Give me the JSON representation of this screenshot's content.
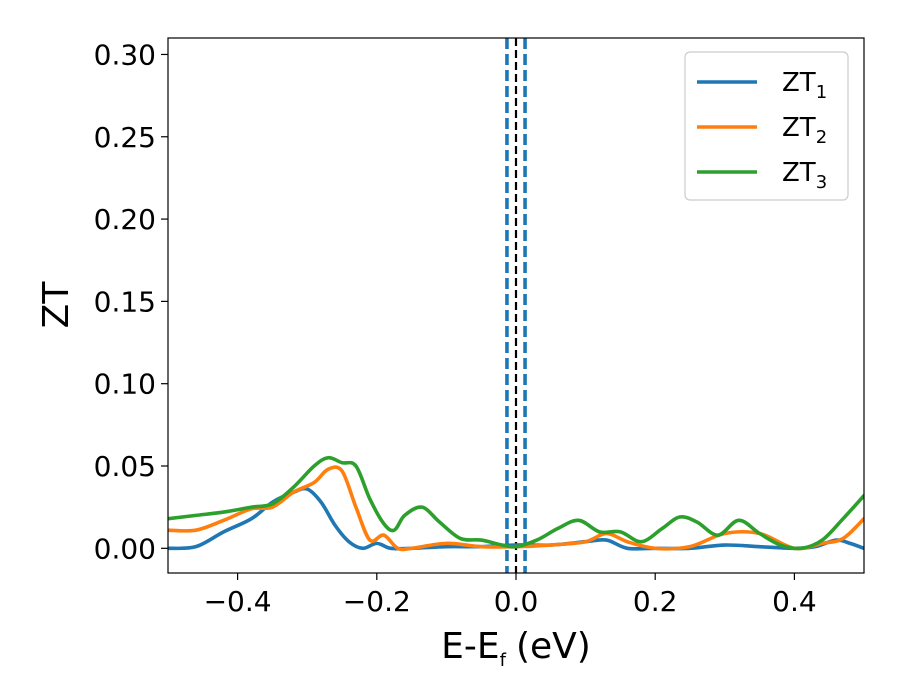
{
  "chart_data": {
    "type": "line",
    "xlabel": "E-E",
    "xlabel_sub": "f",
    "xlabel_unit": "(eV)",
    "ylabel": "ZT",
    "xlim": [
      -0.5,
      0.5
    ],
    "ylim": [
      -0.015,
      0.31
    ],
    "x_ticks": [
      -0.4,
      -0.2,
      0.0,
      0.2,
      0.4
    ],
    "x_tick_labels": [
      "−0.4",
      "−0.2",
      "0.0",
      "0.2",
      "0.4"
    ],
    "y_ticks": [
      0.0,
      0.05,
      0.1,
      0.15,
      0.2,
      0.25,
      0.3
    ],
    "y_tick_labels": [
      "0.00",
      "0.05",
      "0.10",
      "0.15",
      "0.20",
      "0.25",
      "0.30"
    ],
    "grid": false,
    "legend_position": "top-right",
    "vertical_lines": [
      {
        "x": -0.013,
        "style": "dashed",
        "color": "#1f77b4"
      },
      {
        "x": 0.013,
        "style": "dashed",
        "color": "#1f77b4"
      },
      {
        "x": 0.0,
        "style": "dashed",
        "color": "#000000"
      }
    ],
    "series": [
      {
        "name": "ZT",
        "name_sub": "1",
        "color": "#1f77b4",
        "x": [
          -0.5,
          -0.46,
          -0.42,
          -0.38,
          -0.35,
          -0.32,
          -0.3,
          -0.28,
          -0.26,
          -0.24,
          -0.22,
          -0.2,
          -0.18,
          -0.15,
          -0.1,
          -0.05,
          0.0,
          0.05,
          0.1,
          0.13,
          0.16,
          0.2,
          0.25,
          0.3,
          0.35,
          0.4,
          0.43,
          0.46,
          0.48,
          0.5
        ],
        "y": [
          0.0,
          0.001,
          0.01,
          0.018,
          0.028,
          0.034,
          0.036,
          0.028,
          0.014,
          0.004,
          0.0,
          0.003,
          0.0,
          0.0,
          0.001,
          0.001,
          0.002,
          0.002,
          0.004,
          0.005,
          0.0,
          0.0,
          0.0,
          0.002,
          0.001,
          0.0,
          0.001,
          0.005,
          0.003,
          0.0
        ]
      },
      {
        "name": "ZT",
        "name_sub": "2",
        "color": "#ff7f0e",
        "x": [
          -0.5,
          -0.46,
          -0.42,
          -0.38,
          -0.35,
          -0.32,
          -0.29,
          -0.27,
          -0.25,
          -0.23,
          -0.21,
          -0.19,
          -0.17,
          -0.15,
          -0.1,
          -0.05,
          0.0,
          0.05,
          0.1,
          0.13,
          0.16,
          0.2,
          0.25,
          0.3,
          0.35,
          0.4,
          0.44,
          0.47,
          0.5
        ],
        "y": [
          0.011,
          0.011,
          0.017,
          0.024,
          0.025,
          0.034,
          0.04,
          0.048,
          0.047,
          0.025,
          0.005,
          0.008,
          0.0,
          0.0,
          0.003,
          0.001,
          0.001,
          0.002,
          0.004,
          0.009,
          0.004,
          0.0,
          0.001,
          0.009,
          0.009,
          0.0,
          0.003,
          0.006,
          0.018
        ]
      },
      {
        "name": "ZT",
        "name_sub": "3",
        "color": "#2ca02c",
        "x": [
          -0.5,
          -0.46,
          -0.42,
          -0.38,
          -0.35,
          -0.32,
          -0.29,
          -0.27,
          -0.25,
          -0.23,
          -0.21,
          -0.19,
          -0.175,
          -0.16,
          -0.135,
          -0.11,
          -0.08,
          -0.05,
          -0.02,
          0.0,
          0.03,
          0.06,
          0.09,
          0.12,
          0.15,
          0.18,
          0.21,
          0.235,
          0.26,
          0.29,
          0.32,
          0.35,
          0.38,
          0.41,
          0.44,
          0.47,
          0.5
        ],
        "y": [
          0.018,
          0.02,
          0.022,
          0.025,
          0.027,
          0.037,
          0.05,
          0.055,
          0.052,
          0.05,
          0.03,
          0.015,
          0.011,
          0.02,
          0.025,
          0.016,
          0.006,
          0.005,
          0.002,
          0.001,
          0.005,
          0.012,
          0.017,
          0.01,
          0.01,
          0.004,
          0.012,
          0.019,
          0.016,
          0.008,
          0.017,
          0.009,
          0.002,
          0.0,
          0.005,
          0.018,
          0.032
        ]
      }
    ]
  }
}
